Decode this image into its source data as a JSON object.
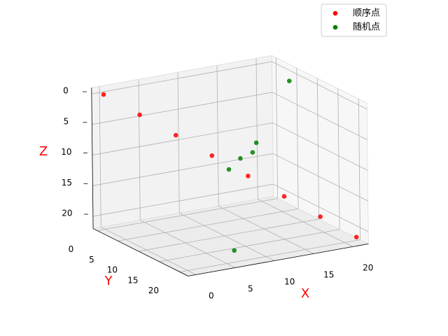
{
  "chart_data": {
    "type": "scatter3d",
    "xlabel": "X",
    "ylabel": "Y",
    "zlabel": "Z",
    "xlim": [
      -1,
      22
    ],
    "ylim": [
      -1,
      22
    ],
    "zlim": [
      -1,
      22
    ],
    "xticks": [
      0,
      5,
      10,
      15,
      20
    ],
    "yticks": [
      0,
      5,
      10,
      15,
      20
    ],
    "zticks": [
      0,
      5,
      10,
      15,
      20
    ],
    "z_inverted": true,
    "grid": true,
    "legend": "upper right",
    "label_color": "#ff0000",
    "series": [
      {
        "name": "顺序点",
        "color": "#ff0000",
        "x": [
          0,
          3,
          6,
          9,
          12,
          15,
          18,
          21
        ],
        "y": [
          0,
          3,
          6,
          9,
          12,
          15,
          18,
          21
        ],
        "z": [
          0,
          3,
          6,
          9,
          12,
          15,
          18,
          21
        ]
      },
      {
        "name": "随机点",
        "color": "#008000",
        "x": [
          20,
          11,
          10,
          10,
          8,
          7
        ],
        "y": [
          7,
          16,
          17,
          14,
          15,
          18
        ],
        "z": [
          0,
          5,
          6,
          8,
          9,
          21
        ]
      }
    ]
  }
}
